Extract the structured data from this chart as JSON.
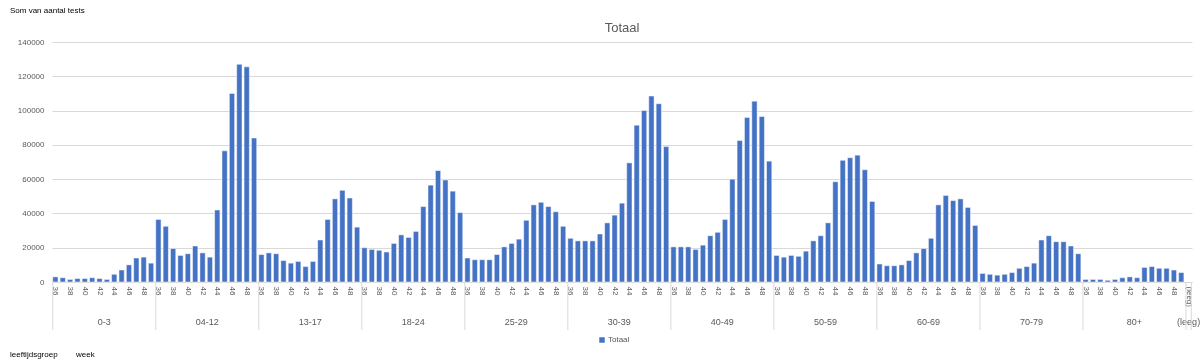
{
  "chart_data": {
    "type": "bar",
    "title": "Totaal",
    "categories": [
      "36",
      null,
      "38",
      null,
      "40",
      null,
      "42",
      null,
      "44",
      null,
      "46",
      null,
      "48",
      null,
      "36",
      null,
      "38",
      null,
      "40",
      null,
      "42",
      null,
      "44",
      null,
      "46",
      null,
      "48",
      null,
      "36",
      null,
      "38",
      null,
      "40",
      null,
      "42",
      null,
      "44",
      null,
      "46",
      null,
      "48",
      null,
      "36",
      null,
      "38",
      null,
      "40",
      null,
      "42",
      null,
      "44",
      null,
      "46",
      null,
      "48",
      null,
      "36",
      null,
      "38",
      null,
      "40",
      null,
      "42",
      null,
      "44",
      null,
      "46",
      null,
      "48",
      null,
      "36",
      null,
      "38",
      null,
      "40",
      null,
      "42",
      null,
      "44",
      null,
      "46",
      null,
      "48",
      null,
      "36",
      null,
      "38",
      null,
      "40",
      null,
      "42",
      null,
      "44",
      null,
      "46",
      null,
      "48",
      null,
      "36",
      null,
      "38",
      null,
      "40",
      null,
      "42",
      null,
      "44",
      null,
      "46",
      null,
      "48",
      null,
      "36",
      null,
      "38",
      null,
      "40",
      null,
      "42",
      null,
      "44",
      null,
      "46",
      null,
      "48",
      null,
      "36",
      null,
      "38",
      null,
      "40",
      null,
      "42",
      null,
      "44",
      null,
      "46",
      null,
      "48",
      null,
      "36",
      null,
      "38",
      null,
      "40",
      null,
      "42",
      null,
      "44",
      null,
      "46",
      null,
      "48",
      null,
      "(leeg)"
    ],
    "series": [
      {
        "name": "Totaal",
        "color": "#4472c4",
        "values": [
          3000,
          2500,
          1500,
          2000,
          2000,
          2500,
          2000,
          1500,
          4500,
          7000,
          10000,
          14000,
          14500,
          11000,
          36500,
          32500,
          19500,
          15500,
          16500,
          21000,
          17000,
          14500,
          42000,
          76500,
          110000,
          127000,
          125500,
          84000,
          16000,
          17000,
          16500,
          12500,
          11000,
          12000,
          9000,
          12000,
          24500,
          36500,
          48500,
          53500,
          49000,
          32000,
          20000,
          19000,
          18500,
          17500,
          22500,
          27500,
          26000,
          29500,
          44000,
          56500,
          65000,
          59500,
          53000,
          40500,
          14000,
          13000,
          13000,
          13000,
          16000,
          20500,
          22500,
          25000,
          36000,
          45000,
          46500,
          44000,
          41000,
          32500,
          25500,
          24000,
          24000,
          24000,
          28000,
          34500,
          39000,
          46000,
          69500,
          91500,
          100000,
          108500,
          104000,
          79000,
          20500,
          20500,
          20500,
          19000,
          21500,
          27000,
          29000,
          36500,
          60000,
          82500,
          96000,
          105500,
          96500,
          70500,
          15500,
          14500,
          15500,
          15000,
          18000,
          24000,
          27000,
          34500,
          58500,
          71000,
          72500,
          74000,
          65500,
          47000,
          10500,
          9500,
          9500,
          10000,
          12500,
          17000,
          19500,
          25500,
          45000,
          50500,
          47500,
          48500,
          43500,
          33000,
          5000,
          4500,
          4000,
          4500,
          5500,
          8000,
          9000,
          11000,
          24500,
          27000,
          23500,
          23500,
          21000,
          16500,
          1500,
          1500,
          1500,
          1000,
          1500,
          2500,
          3000,
          2500,
          8500,
          9000,
          8000,
          8000,
          7000,
          5500,
          null
        ]
      }
    ],
    "ylim": [
      0,
      140000
    ],
    "yticks": [
      0,
      20000,
      40000,
      60000,
      80000,
      100000,
      120000,
      140000
    ],
    "grid": "y",
    "legend": "bottom",
    "annotations": [
      "Som van aantal tests",
      "0-3",
      "04-12",
      "13-17",
      "18-24",
      "25-29",
      "30-39",
      "40-49",
      "50-59",
      "60-69",
      "70-79",
      "80+",
      "(leeg)",
      "leeftijdsgroep",
      "week"
    ]
  }
}
